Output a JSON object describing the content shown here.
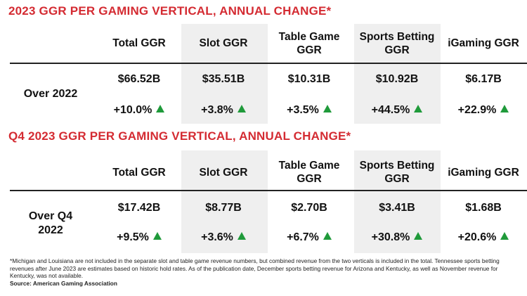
{
  "sections": [
    {
      "title": "2023 GGR PER GAMING VERTICAL, ANNUAL CHANGE*",
      "headers": [
        "Total GGR",
        "Slot GGR",
        "Table Game GGR",
        "Sports Betting GGR",
        "iGaming GGR"
      ],
      "row_label": "Over 2022",
      "values": [
        "$66.52B",
        "$35.51B",
        "$10.31B",
        "$10.92B",
        "$6.17B"
      ],
      "changes": [
        "+10.0%",
        "+3.8%",
        "+3.5%",
        "+44.5%",
        "+22.9%"
      ]
    },
    {
      "title": "Q4 2023 GGR PER GAMING VERTICAL, ANNUAL CHANGE*",
      "headers": [
        "Total GGR",
        "Slot GGR",
        "Table Game GGR",
        "Sports Betting GGR",
        "iGaming GGR"
      ],
      "row_label": "Over Q4 2022",
      "values": [
        "$17.42B",
        "$8.77B",
        "$2.70B",
        "$3.41B",
        "$1.68B"
      ],
      "changes": [
        "+9.5%",
        "+3.6%",
        "+6.7%",
        "+30.8%",
        "+20.6%"
      ]
    }
  ],
  "footnote": "*Michigan and Louisiana are not included in the separate slot and table game revenue numbers, but combined revenue from the two verticals is included in the total. Tennessee sports betting revenues after June 2023 are estimates based on historic hold rates. As of the publication date, December sports betting revenue for Arizona and Kentucky, as well as November revenue for Kentucky, was not available.",
  "source": "Source: American Gaming Association",
  "colors": {
    "title": "#d42b32",
    "up_arrow": "#1f9a3a",
    "shade": "#efefef"
  },
  "icons": {
    "change": "up-triangle-icon"
  }
}
